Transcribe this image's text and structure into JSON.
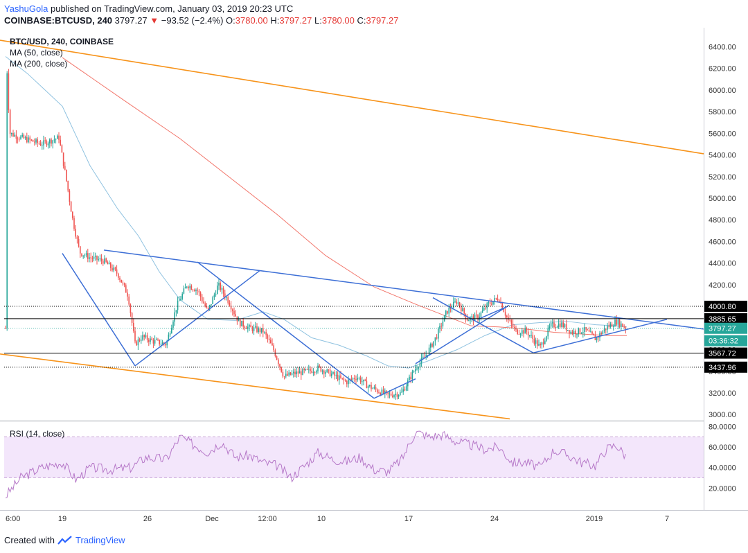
{
  "header": {
    "author": "YashuGola",
    "published": "published on TradingView.com, January 03, 2019 20:23 UTC",
    "symbol": "COINBASE:BTCUSD, 240",
    "last": "3797.27",
    "change": "−93.52 (−2.4%)",
    "o_label": "O:",
    "o": "3780.00",
    "h_label": "H:",
    "h": "3797.27",
    "l_label": "L:",
    "l": "3780.00",
    "c_label": "C:",
    "c": "3797.27"
  },
  "legend": {
    "title": "BTC/USD, 240, COINBASE",
    "ma50": "MA (50, close)",
    "ma200": "MA (200, close)",
    "rsi": "RSI (14, close)"
  },
  "footer": {
    "created_with": "Created with",
    "brand": "TradingView"
  },
  "colors": {
    "up": "#26a69a",
    "down": "#ef5350",
    "ma50": "#8fc2e0",
    "ma200": "#f2766b",
    "trend": "#3d6fd6",
    "channel": "#f7931a",
    "rsi": "#b678c8",
    "rsi_band": "#f3e6fb"
  },
  "chart_data": [
    {
      "type": "candlestick",
      "title": "BTC/USD, 240, COINBASE",
      "ylim": [
        2950,
        6550
      ],
      "y_ticks": [
        "3000.00",
        "3200.00",
        "3400.00",
        "3600.00",
        "3800.00",
        "4000.00",
        "4200.00",
        "4400.00",
        "4600.00",
        "4800.00",
        "5000.00",
        "5200.00",
        "5400.00",
        "5600.00",
        "5800.00",
        "6000.00",
        "6200.00",
        "6400.00"
      ],
      "x_ticks": [
        "6:00",
        "19",
        "26",
        "Dec",
        "12:00",
        "10",
        "17",
        "24",
        "2019",
        "7"
      ],
      "price_markers": [
        {
          "value": "4000.80",
          "style": "dotted"
        },
        {
          "value": "3885.65",
          "style": "solid"
        },
        {
          "value": "3797.27",
          "style": "last",
          "countdown": "03:36:32"
        },
        {
          "value": "3567.72",
          "style": "solid"
        },
        {
          "value": "3437.96",
          "style": "dotted"
        }
      ],
      "series": [
        {
          "name": "MA (50, close)"
        },
        {
          "name": "MA (200, close)"
        }
      ]
    },
    {
      "type": "line",
      "title": "RSI (14, close)",
      "ylim": [
        0,
        85
      ],
      "y_ticks": [
        "20.0000",
        "40.0000",
        "60.0000",
        "80.0000"
      ],
      "bands": [
        30,
        70
      ]
    }
  ]
}
